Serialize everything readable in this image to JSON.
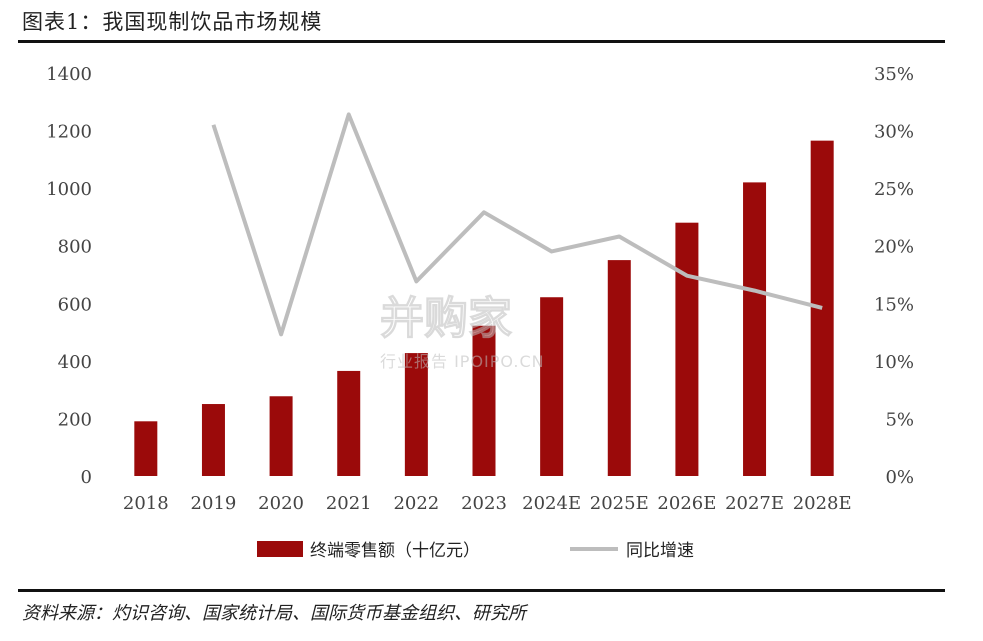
{
  "figure": {
    "title": "图表1：我国现制饮品市场规模",
    "source": "资料来源：灼识咨询、国家统计局、国际货币基金组织、研究所"
  },
  "watermark": {
    "main": "并购家",
    "sub": "行业报告 IPOIPO.CN"
  },
  "colors": {
    "bar": "#9b0a0a",
    "line": "#bdbdbd"
  },
  "chart_data": {
    "type": "bar",
    "categories": [
      "2018",
      "2019",
      "2020",
      "2021",
      "2022",
      "2023",
      "2024E",
      "2025E",
      "2026E",
      "2027E",
      "2028E"
    ],
    "series": [
      {
        "name": "终端零售额（十亿元）",
        "type": "bar",
        "axis": "left",
        "values": [
          190,
          250,
          277,
          365,
          427,
          522,
          621,
          750,
          880,
          1020,
          1165
        ]
      },
      {
        "name": "同比增速",
        "type": "line",
        "axis": "right",
        "values": [
          null,
          30.5,
          12.3,
          31.4,
          16.9,
          22.9,
          19.5,
          20.8,
          17.4,
          16.1,
          14.6
        ]
      }
    ],
    "y_left": {
      "ylim": [
        0,
        1400
      ],
      "ticks": [
        "0",
        "200",
        "400",
        "600",
        "800",
        "1000",
        "1200",
        "1400"
      ]
    },
    "y_right": {
      "ylim": [
        0,
        35
      ],
      "ticks": [
        "0%",
        "5%",
        "10%",
        "15%",
        "20%",
        "25%",
        "30%",
        "35%"
      ]
    },
    "legend": [
      "终端零售额（十亿元）",
      "同比增速"
    ],
    "legend_position": "bottom",
    "grid": false
  }
}
